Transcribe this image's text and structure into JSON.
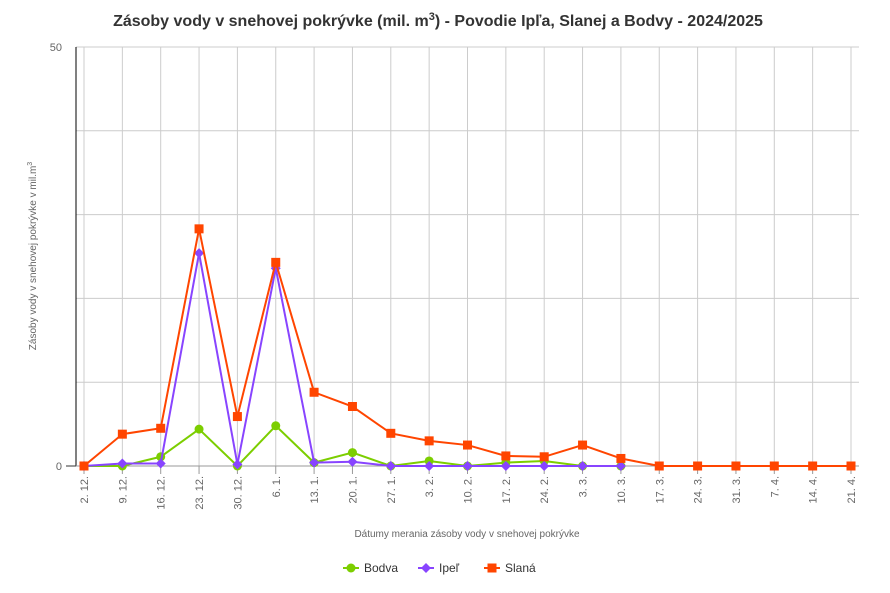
{
  "chart_data": {
    "type": "line",
    "title": "Zásoby vody v snehovej pokrývke (mil. m",
    "title_sup": "3",
    "title_rest": ") - Povodie Ipľa, Slanej a Bodvy - 2024/2025",
    "xlabel": "Dátumy merania zásoby vody v snehovej pokrývke",
    "ylabel": "Zásoby vody v snehovej pokrývke v mil.m",
    "ylabel_sup": "3",
    "ylim": [
      0,
      50
    ],
    "yticks_labeled": [
      "0",
      "50"
    ],
    "grid": true,
    "legend_position": "bottom-center",
    "categories": [
      "2. 12.",
      "9. 12.",
      "16. 12.",
      "23. 12.",
      "30. 12.",
      "6. 1.",
      "13. 1.",
      "20. 1.",
      "27. 1.",
      "3. 2.",
      "10. 2.",
      "17. 2.",
      "24. 2.",
      "3. 3.",
      "10. 3.",
      "17. 3.",
      "24. 3.",
      "31. 3.",
      "7. 4.",
      "14. 4.",
      "21. 4."
    ],
    "series": [
      {
        "name": "Bodva",
        "color": "#7cce00",
        "marker": "circle",
        "values": [
          0,
          0,
          1.1,
          4.4,
          0,
          4.8,
          0.4,
          1.6,
          0,
          0.6,
          0,
          0.4,
          0.6,
          0,
          0,
          null,
          null,
          null,
          null,
          null,
          null
        ]
      },
      {
        "name": "Ipeľ",
        "color": "#8844ff",
        "marker": "diamond",
        "values": [
          0,
          0.3,
          0.3,
          25.4,
          0.2,
          23.6,
          0.4,
          0.5,
          0,
          0,
          0,
          0,
          0,
          0,
          0,
          null,
          null,
          null,
          null,
          null,
          null
        ]
      },
      {
        "name": "Slaná",
        "color": "#ff4500",
        "marker": "square",
        "values": [
          0,
          3.8,
          4.5,
          28.3,
          5.9,
          24.3,
          8.8,
          7.1,
          3.9,
          3.0,
          2.5,
          1.2,
          1.1,
          2.5,
          0.9,
          0,
          0,
          0,
          0,
          0,
          0
        ]
      }
    ]
  }
}
